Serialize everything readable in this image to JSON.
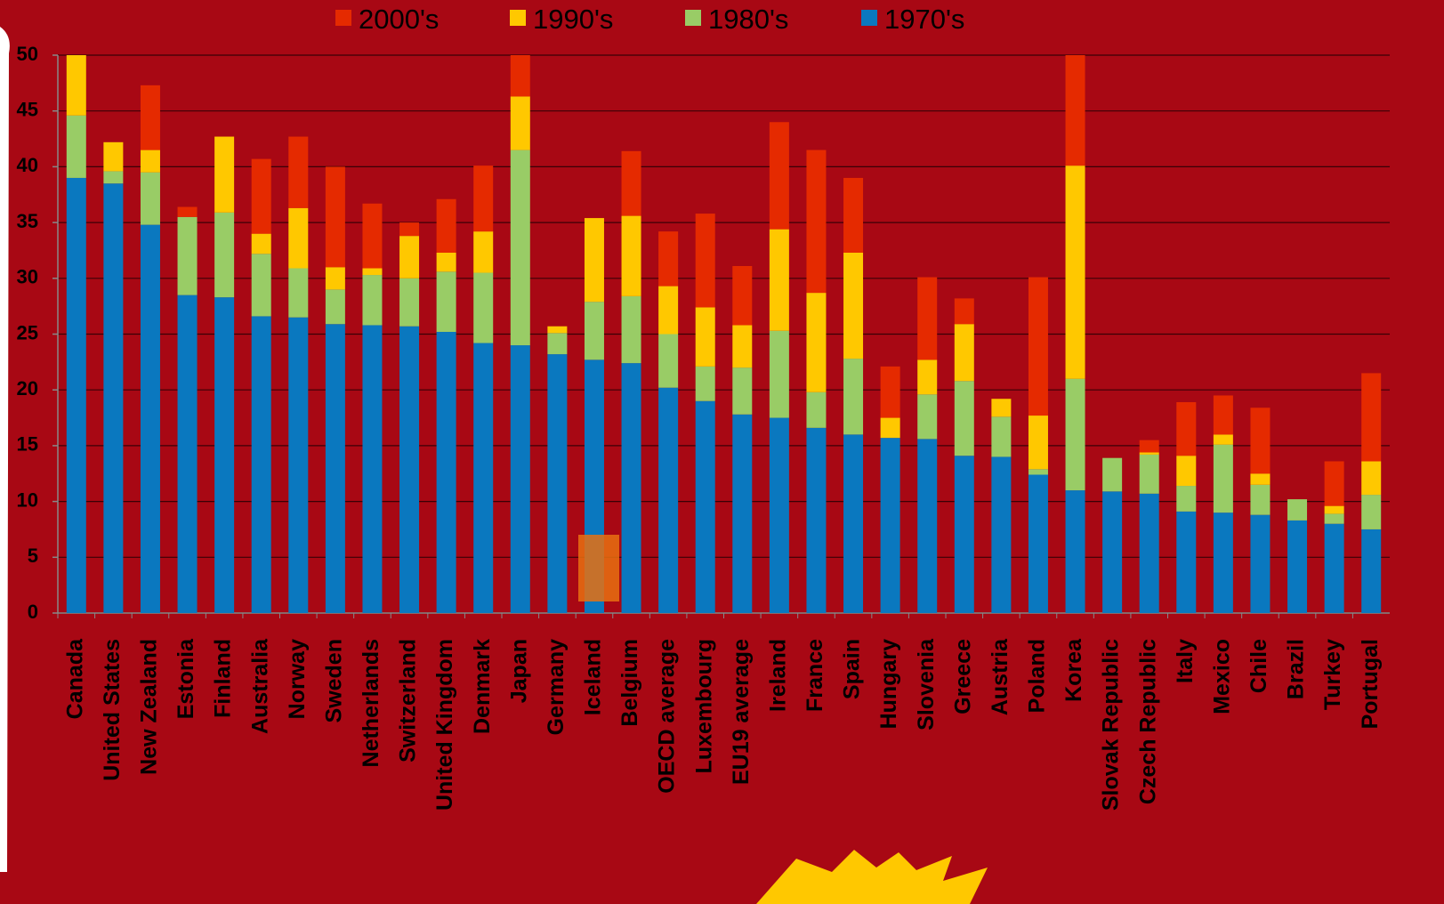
{
  "chart_data": {
    "type": "bar",
    "categories": [
      "Canada",
      "United States",
      "New Zealand",
      "Estonia",
      "Finland",
      "Australia",
      "Norway",
      "Sweden",
      "Netherlands",
      "Switzerland",
      "United Kingdom",
      "Denmark",
      "Japan",
      "Germany",
      "Iceland",
      "Belgium",
      "OECD average",
      "Luxembourg",
      "EU19 average",
      "Ireland",
      "France",
      "Spain",
      "Hungary",
      "Slovenia",
      "Greece",
      "Austria",
      "Poland",
      "Korea",
      "Slovak Republic",
      "Czech Republic",
      "Italy",
      "Mexico",
      "Chile",
      "Brazil",
      "Turkey",
      "Portugal"
    ],
    "series": [
      {
        "name": "2000's",
        "color": "#e52a00",
        "values": [
          0,
          0,
          5.8,
          0.9,
          0,
          6.7,
          6.4,
          9.0,
          5.8,
          1.2,
          4.8,
          5.9,
          3.7,
          0,
          0,
          5.8,
          4.9,
          8.4,
          5.3,
          9.6,
          12.8,
          6.7,
          4.6,
          7.4,
          2.3,
          0,
          12.4,
          9.9,
          0,
          1.1,
          4.8,
          3.5,
          5.9,
          0,
          4.0,
          7.9
        ]
      },
      {
        "name": "1990's",
        "color": "#ffc800",
        "values": [
          5.4,
          2.6,
          2.0,
          0,
          6.8,
          1.8,
          5.4,
          2.0,
          0.6,
          3.8,
          1.7,
          3.7,
          4.8,
          0.6,
          7.5,
          7.2,
          4.3,
          5.3,
          3.8,
          9.1,
          8.9,
          9.5,
          1.8,
          3.1,
          5.1,
          1.6,
          4.8,
          19.1,
          0,
          0.2,
          2.7,
          0.9,
          1.0,
          0,
          0.7,
          3.0
        ]
      },
      {
        "name": "1980's",
        "color": "#99cc66",
        "values": [
          5.6,
          1.1,
          4.7,
          7.0,
          7.6,
          5.6,
          4.4,
          3.1,
          4.5,
          4.3,
          5.4,
          6.3,
          17.5,
          1.9,
          5.2,
          6.0,
          4.8,
          3.1,
          4.2,
          7.8,
          3.2,
          6.8,
          0,
          4.0,
          6.7,
          3.6,
          0.5,
          10.0,
          3.0,
          3.5,
          2.3,
          6.1,
          2.7,
          1.9,
          0.9,
          3.1
        ]
      },
      {
        "name": "1970's",
        "color": "#0a78bf",
        "values": [
          39.0,
          38.5,
          34.8,
          28.5,
          28.3,
          26.6,
          26.5,
          25.9,
          25.8,
          25.7,
          25.2,
          24.2,
          24.0,
          23.2,
          22.7,
          22.4,
          20.2,
          19.0,
          17.8,
          17.5,
          16.6,
          16.0,
          15.7,
          15.6,
          14.1,
          14.0,
          12.4,
          11.0,
          10.9,
          10.7,
          9.1,
          9.0,
          8.8,
          8.3,
          8.0,
          7.5
        ]
      }
    ],
    "ylim": [
      0,
      50
    ],
    "yticks": [
      0,
      5,
      10,
      15,
      20,
      25,
      30,
      35,
      40,
      45,
      50
    ],
    "grid": true,
    "stacked": true,
    "legend": "top"
  }
}
